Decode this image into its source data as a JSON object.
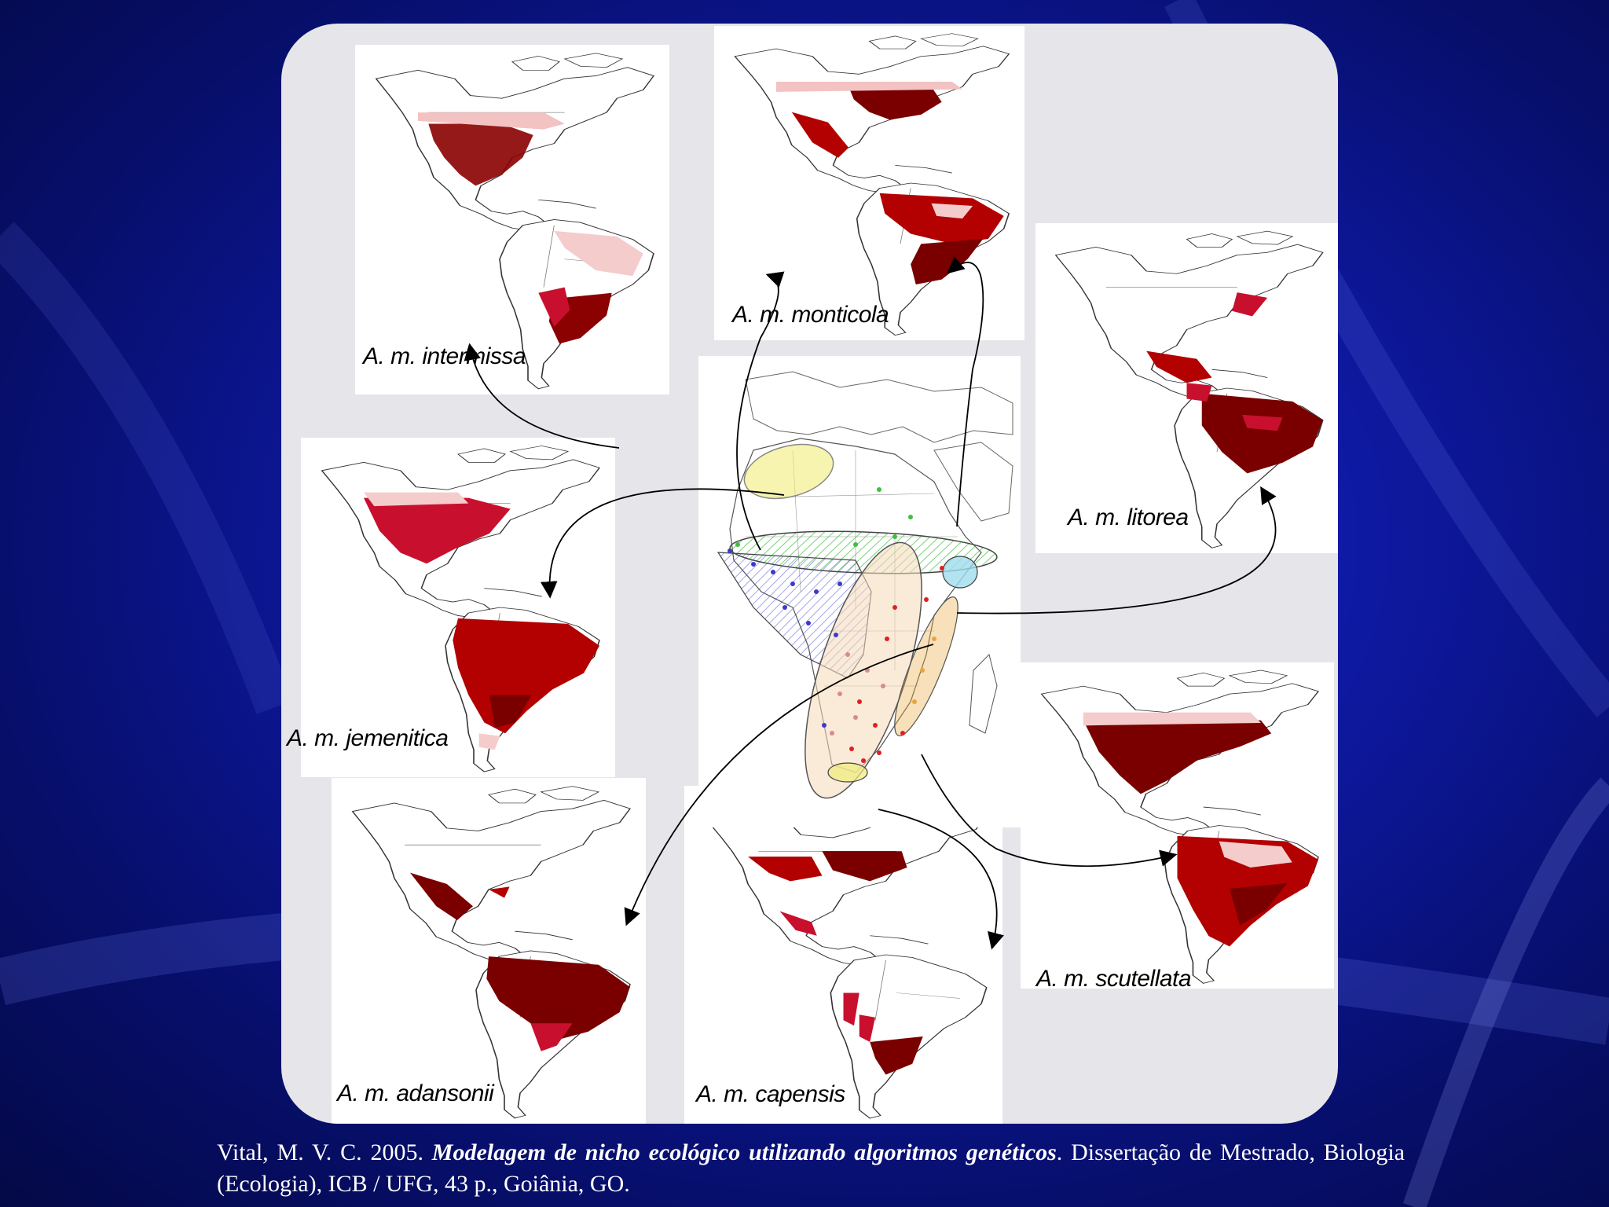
{
  "colors": {
    "background": "#0f1aa8",
    "panel": "#e6e5e9",
    "range_high": "#7a0000",
    "range_mid": "#c8102e",
    "range_low": "#f4c4c4",
    "group_yellow": "#f0ec7a",
    "group_green": "#3fbf3f",
    "group_blue": "#3a3acc",
    "group_cyan": "#9fdcec",
    "group_orange": "#e8a53a",
    "group_red": "#e02020"
  },
  "subspecies": [
    {
      "name": "A. m. intermissa",
      "icon": "americas-range-map"
    },
    {
      "name": "A. m. monticola",
      "icon": "americas-range-map"
    },
    {
      "name": "A. m. litorea",
      "icon": "americas-range-map"
    },
    {
      "name": "A. m. jemenitica",
      "icon": "americas-range-map"
    },
    {
      "name": "A. m. scutellata",
      "icon": "americas-range-map"
    },
    {
      "name": "A. m. adansonii",
      "icon": "americas-range-map"
    },
    {
      "name": "A. m. capensis",
      "icon": "americas-range-map"
    }
  ],
  "center_map": {
    "icon": "africa-occurrence-map"
  },
  "citation": {
    "prefix": "Vital, M. V. C. 2005. ",
    "title": "Modelagem de nicho ecológico utilizando algoritmos genéticos",
    "suffix": ". Dissertação de Mestrado, Biologia (Ecologia), ICB / UFG, 43 p., Goiânia, GO."
  }
}
